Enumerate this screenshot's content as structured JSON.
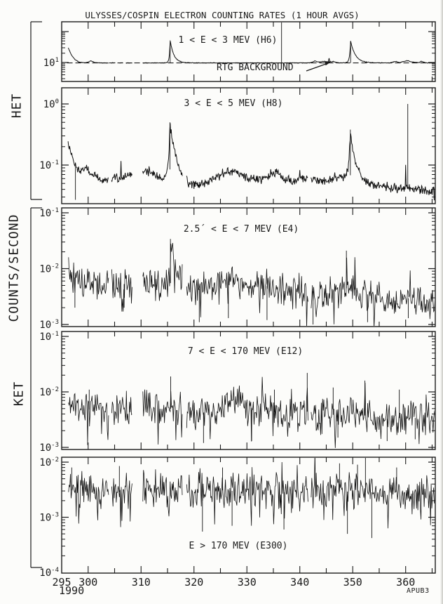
{
  "chart_data": {
    "type": "line",
    "title": "ULYSSES/COSPIN ELECTRON COUNTING RATES (1 HOUR AVGS)",
    "ylabel": "COUNTS/SECOND",
    "instrument_labels": {
      "het": "HET",
      "ket": "KET"
    },
    "footer": "APUB3",
    "x_axis": {
      "range": [
        295,
        365.6
      ],
      "major_tick_labels": [
        295,
        300,
        310,
        320,
        330,
        340,
        350,
        360
      ],
      "minor_tick_step": 5,
      "year": "1990"
    },
    "panels": [
      {
        "id": "H6",
        "label": "1 < E < 3 MEV (H6)",
        "annotation": {
          "text": "RTG BACKGROUND"
        },
        "ytick_exps": [
          1
        ],
        "style": "line",
        "seed": 101,
        "dt": 0.08,
        "t_start": 296.25,
        "rtg_level": 9.7,
        "noise": {
          "dex": 0.012,
          "down_p": 0,
          "down_amp": 0,
          "up_p": 0,
          "up_amp": 0
        },
        "trend": [
          [
            296.25,
            30
          ],
          [
            296.8,
            18
          ],
          [
            297.5,
            12.5
          ],
          [
            298.3,
            10.3
          ],
          [
            299.2,
            9.8
          ],
          [
            300.0,
            10.2
          ],
          [
            300.5,
            11.4
          ],
          [
            301.2,
            10.1
          ],
          [
            302,
            9.7
          ],
          [
            342,
            9.7
          ],
          [
            342.8,
            11.2
          ],
          [
            343.6,
            10.3
          ],
          [
            344.6,
            11.0
          ],
          [
            345.3,
            10.2
          ],
          [
            346.3,
            10.8
          ],
          [
            347.1,
            9.8
          ],
          [
            357,
            9.7
          ],
          [
            358.1,
            10.9
          ],
          [
            358.9,
            10.0
          ],
          [
            360.3,
            11.5
          ],
          [
            361.3,
            10.3
          ],
          [
            362.5,
            9.8
          ],
          [
            362.9,
            11.0
          ],
          [
            363.7,
            9.8
          ],
          [
            365.5,
            9.7
          ]
        ],
        "spikes": [
          [
            315.5,
            52,
            0.15,
            0.7
          ],
          [
            349.6,
            50,
            0.2,
            0.9
          ],
          [
            345.5,
            15,
            0.06,
            0.1
          ]
        ],
        "vlines": [
          [
            315.5,
            52
          ],
          [
            349.6,
            50
          ],
          [
            336.55,
            250
          ]
        ],
        "gaps": [
          [
            303.9,
            304.4
          ],
          [
            305.2,
            305.9
          ],
          [
            306.6,
            307.1
          ],
          [
            308.4,
            310.3
          ]
        ]
      },
      {
        "id": "H8",
        "label": "3 < E < 5 MEV (H8)",
        "ytick_exps": [
          0,
          -1
        ],
        "style": "line",
        "seed": 202,
        "dt": 0.1,
        "t_start": 296.2,
        "noise": {
          "dex": 0.09,
          "down_p": 0.006,
          "down_amp": 0.4,
          "up_p": 0.004,
          "up_amp": 0.25
        },
        "trend": [
          [
            296.2,
            0.24
          ],
          [
            297.3,
            0.105
          ],
          [
            298.0,
            0.08
          ],
          [
            299.3,
            0.09
          ],
          [
            300.2,
            0.075
          ],
          [
            302,
            0.06
          ],
          [
            303.5,
            0.055
          ],
          [
            305,
            0.065
          ],
          [
            306.5,
            0.06
          ],
          [
            308,
            0.07
          ],
          [
            310.4,
            0.075
          ],
          [
            311.5,
            0.08
          ],
          [
            312.5,
            0.07
          ],
          [
            314,
            0.06
          ],
          [
            314.9,
            0.075
          ],
          [
            316.2,
            0.1
          ],
          [
            317.3,
            0.068
          ],
          [
            319,
            0.05
          ],
          [
            320.5,
            0.048
          ],
          [
            322,
            0.052
          ],
          [
            324,
            0.06
          ],
          [
            326,
            0.075
          ],
          [
            327.3,
            0.082
          ],
          [
            329,
            0.07
          ],
          [
            331,
            0.058
          ],
          [
            333,
            0.06
          ],
          [
            334.5,
            0.07
          ],
          [
            337,
            0.06
          ],
          [
            338.5,
            0.055
          ],
          [
            340,
            0.06
          ],
          [
            342,
            0.062
          ],
          [
            344,
            0.055
          ],
          [
            346,
            0.06
          ],
          [
            347.5,
            0.065
          ],
          [
            350.8,
            0.07
          ],
          [
            352,
            0.055
          ],
          [
            354,
            0.048
          ],
          [
            356,
            0.045
          ],
          [
            358,
            0.042
          ],
          [
            360,
            0.04
          ],
          [
            362,
            0.042
          ],
          [
            364,
            0.038
          ],
          [
            365.5,
            0.04
          ]
        ],
        "spikes": [
          [
            315.45,
            0.5,
            0.2,
            0.8
          ],
          [
            349.55,
            0.38,
            0.25,
            0.8
          ],
          [
            335.6,
            0.085,
            0.4,
            0.6
          ],
          [
            360.0,
            0.1,
            0.04,
            0.06
          ]
        ],
        "vlines": [
          [
            315.45,
            0.5
          ],
          [
            349.55,
            0.38
          ],
          [
            360.4,
            1.0
          ],
          [
            297.6,
            0.027
          ]
        ],
        "gaps": [
          [
            303.9,
            304.4
          ],
          [
            308.4,
            310.3
          ],
          [
            317.9,
            318.6
          ],
          [
            341.6,
            342.1
          ]
        ]
      },
      {
        "id": "E4",
        "label": "2.5´ < E < 7 MEV (E4)",
        "ytick_exps": [
          -1,
          -2,
          -3
        ],
        "style": "bars",
        "seed": 303,
        "dt": 0.12,
        "t_start": 296.3,
        "noise": {
          "dex": 0.34,
          "down_p": 0.05,
          "down_amp": 0.55,
          "up_p": 0.02,
          "up_amp": 0.4
        },
        "trend": [
          [
            296.3,
            0.009
          ],
          [
            298,
            0.0062
          ],
          [
            300,
            0.0058
          ],
          [
            302,
            0.005
          ],
          [
            304,
            0.0052
          ],
          [
            306,
            0.0055
          ],
          [
            308,
            0.005
          ],
          [
            310.4,
            0.0055
          ],
          [
            312,
            0.005
          ],
          [
            314,
            0.0048
          ],
          [
            316.5,
            0.006
          ],
          [
            318,
            0.0052
          ],
          [
            320,
            0.0042
          ],
          [
            322,
            0.0045
          ],
          [
            324,
            0.005
          ],
          [
            325.5,
            0.0058
          ],
          [
            327,
            0.006
          ],
          [
            329,
            0.0052
          ],
          [
            331,
            0.0045
          ],
          [
            333,
            0.0048
          ],
          [
            335,
            0.005
          ],
          [
            337,
            0.0042
          ],
          [
            339,
            0.004
          ],
          [
            341,
            0.0042
          ],
          [
            343,
            0.0038
          ],
          [
            345,
            0.0035
          ],
          [
            347,
            0.004
          ],
          [
            349,
            0.0045
          ],
          [
            350.5,
            0.0042
          ],
          [
            352,
            0.0038
          ],
          [
            354,
            0.003
          ],
          [
            356,
            0.0028
          ],
          [
            358,
            0.0026
          ],
          [
            360,
            0.003
          ],
          [
            362,
            0.0028
          ],
          [
            364,
            0.0026
          ],
          [
            365.5,
            0.0028
          ]
        ],
        "spikes": [
          [
            315.55,
            0.033,
            0.08,
            0.8
          ],
          [
            348.8,
            0.021,
            0.03,
            0.12
          ],
          [
            350.4,
            0.016,
            0.03,
            0.1
          ]
        ],
        "vlines": [
          [
            315.55,
            0.034
          ],
          [
            348.8,
            0.021
          ],
          [
            350.4,
            0.016
          ],
          [
            321.0,
            0.0011
          ],
          [
            326.5,
            0.0013
          ],
          [
            333.8,
            0.0012
          ],
          [
            342.5,
            0.001
          ],
          [
            352.8,
            0.0011
          ],
          [
            360.5,
            0.0013
          ],
          [
            297.5,
            0.002
          ],
          [
            306.8,
            0.002
          ]
        ],
        "gaps": [
          [
            303.9,
            304.4
          ],
          [
            308.4,
            310.3
          ],
          [
            317.9,
            318.6
          ],
          [
            341.6,
            342.1
          ]
        ]
      },
      {
        "id": "E12",
        "label": "7 < E < 170 MEV (E12)",
        "ytick_exps": [
          -1,
          -2,
          -3
        ],
        "style": "bars",
        "seed": 404,
        "dt": 0.12,
        "t_start": 296.3,
        "noise": {
          "dex": 0.36,
          "down_p": 0.05,
          "down_amp": 0.5,
          "up_p": 0.02,
          "up_amp": 0.4
        },
        "trend": [
          [
            296.3,
            0.0052
          ],
          [
            300,
            0.0048
          ],
          [
            304,
            0.005
          ],
          [
            308,
            0.0045
          ],
          [
            310.4,
            0.0055
          ],
          [
            312,
            0.0052
          ],
          [
            314,
            0.0048
          ],
          [
            316,
            0.005
          ],
          [
            318,
            0.0045
          ],
          [
            320,
            0.004
          ],
          [
            322,
            0.0042
          ],
          [
            324,
            0.005
          ],
          [
            326,
            0.0058
          ],
          [
            328,
            0.0062
          ],
          [
            330,
            0.0055
          ],
          [
            332,
            0.0048
          ],
          [
            334,
            0.0045
          ],
          [
            336,
            0.0042
          ],
          [
            338,
            0.004
          ],
          [
            340,
            0.0042
          ],
          [
            342,
            0.0045
          ],
          [
            344,
            0.004
          ],
          [
            346,
            0.0038
          ],
          [
            348,
            0.0042
          ],
          [
            350,
            0.004
          ],
          [
            352,
            0.0038
          ],
          [
            354,
            0.0035
          ],
          [
            356,
            0.0032
          ],
          [
            358,
            0.0035
          ],
          [
            360,
            0.0032
          ],
          [
            362,
            0.0034
          ],
          [
            364,
            0.0032
          ],
          [
            365.5,
            0.0033
          ]
        ],
        "spikes": [
          [
            315.6,
            0.016,
            0.04,
            0.15
          ],
          [
            341.4,
            0.02,
            0.03,
            0.06
          ],
          [
            352.3,
            0.015,
            0.03,
            0.08
          ]
        ],
        "vlines": [
          [
            315.6,
            0.019
          ],
          [
            341.4,
            0.022
          ],
          [
            335.2,
            0.011
          ],
          [
            346.3,
            0.012
          ],
          [
            352.3,
            0.016
          ],
          [
            358.8,
            0.011
          ],
          [
            300.2,
            0.011
          ],
          [
            321.8,
            0.0012
          ],
          [
            330.9,
            0.0013
          ],
          [
            347.2,
            0.0015
          ],
          [
            356.5,
            0.0013
          ],
          [
            361.8,
            0.0014
          ]
        ],
        "gaps": [
          [
            303.9,
            304.4
          ],
          [
            308.4,
            310.3
          ],
          [
            317.9,
            318.6
          ],
          [
            341.6,
            342.1
          ]
        ]
      },
      {
        "id": "E300",
        "label": "E > 170 MEV (E300)",
        "ytick_exps": [
          -2,
          -3,
          -4
        ],
        "style": "bars",
        "seed": 505,
        "dt": 0.12,
        "t_start": 296.3,
        "noise": {
          "dex": 0.4,
          "down_p": 0.05,
          "down_amp": 0.55,
          "up_p": 0.04,
          "up_amp": 0.45
        },
        "trend": [
          [
            296.3,
            0.0031
          ],
          [
            300,
            0.0029
          ],
          [
            305,
            0.0028
          ],
          [
            310.4,
            0.003
          ],
          [
            315,
            0.0028
          ],
          [
            320,
            0.0029
          ],
          [
            325,
            0.0031
          ],
          [
            330,
            0.0029
          ],
          [
            335,
            0.0028
          ],
          [
            340,
            0.0029
          ],
          [
            345,
            0.003
          ],
          [
            350,
            0.0029
          ],
          [
            355,
            0.0028
          ],
          [
            360,
            0.0029
          ],
          [
            365.5,
            0.0026
          ]
        ],
        "spikes": [],
        "vlines": [
          [
            352.4,
            0.0125
          ],
          [
            305.9,
            0.0085
          ],
          [
            325.4,
            0.008
          ],
          [
            347.5,
            0.0095
          ],
          [
            350.9,
            0.009
          ],
          [
            358.3,
            0.008
          ],
          [
            296.9,
            0.008
          ],
          [
            321.6,
            0.00055
          ],
          [
            337.0,
            0.0006
          ],
          [
            349.0,
            0.0005
          ],
          [
            353.6,
            0.00042
          ],
          [
            327.2,
            0.0007
          ]
        ],
        "gaps": [
          [
            303.9,
            304.4
          ],
          [
            308.4,
            310.3
          ],
          [
            317.9,
            318.6
          ],
          [
            341.6,
            342.1
          ]
        ]
      }
    ]
  }
}
